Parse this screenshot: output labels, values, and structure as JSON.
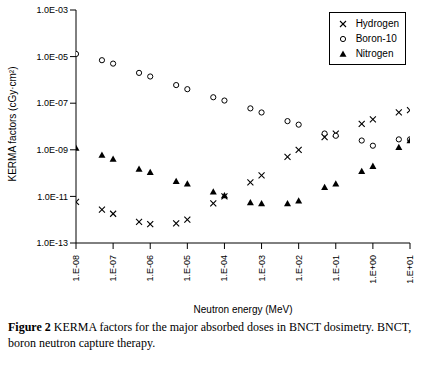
{
  "chart_data": {
    "type": "scatter",
    "caption_label": "Figure 2",
    "caption": "KERMA factors for the major absorbed doses in BNCT dosimetry. BNCT, boron neutron capture therapy.",
    "x_label": "Neutron energy (MeV)",
    "y_label": "KERMA factors (cGy·cm²)",
    "log": true,
    "grid": false,
    "legend": "upper right",
    "x": [
      1e-08,
      5e-08,
      1e-07,
      5e-07,
      1e-06,
      5e-06,
      1e-05,
      5e-05,
      0.0001,
      0.0005,
      0.001,
      0.005,
      0.01,
      0.05,
      0.1,
      0.5,
      1,
      5,
      10
    ],
    "series": [
      {
        "name": "Hydrogen",
        "color": "#000000",
        "marker": "x",
        "values": [
          5.8e-12,
          2.7e-12,
          1.8e-12,
          8e-13,
          6.5e-13,
          7e-13,
          1e-12,
          5e-12,
          1e-11,
          4e-11,
          8e-11,
          5e-10,
          1e-09,
          3.5e-09,
          5e-09,
          1.3e-08,
          2e-08,
          4e-08,
          5e-08
        ]
      },
      {
        "name": "Boron-10",
        "color": "#000000",
        "marker": "circle",
        "values": [
          1.3e-05,
          7e-06,
          5e-06,
          2e-06,
          1.4e-06,
          6e-07,
          4e-07,
          1.8e-07,
          1.3e-07,
          6e-08,
          4e-08,
          1.7e-08,
          1.2e-08,
          5e-09,
          4e-09,
          2.5e-09,
          1.5e-09,
          2.8e-09,
          2.8e-09
        ]
      },
      {
        "name": "Nitrogen",
        "color": "#000000",
        "marker": "triangle",
        "values": [
          1.2e-09,
          6e-10,
          4e-10,
          1.5e-10,
          1.1e-10,
          4.5e-11,
          3.5e-11,
          1.6e-11,
          1.1e-11,
          5.5e-12,
          5e-12,
          5e-12,
          6.5e-12,
          2.5e-11,
          3.5e-11,
          1.2e-10,
          2e-10,
          1.3e-09,
          2.5e-09
        ]
      }
    ],
    "xlim": [
      1e-08,
      10
    ],
    "xticks": [
      {
        "value": 1e-08,
        "label": "1.E-08"
      },
      {
        "value": 1e-07,
        "label": "1.E-07"
      },
      {
        "value": 1e-06,
        "label": "1.E-06"
      },
      {
        "value": 1e-05,
        "label": "1.E-05"
      },
      {
        "value": 0.0001,
        "label": "1.E-04"
      },
      {
        "value": 0.001,
        "label": "1.E-03"
      },
      {
        "value": 0.01,
        "label": "1.E-02"
      },
      {
        "value": 0.1,
        "label": "1.E-01"
      },
      {
        "value": 1,
        "label": "1.E+00"
      },
      {
        "value": 10,
        "label": "1.E+01"
      }
    ],
    "ylim": [
      1e-13,
      0.001
    ],
    "yticks": [
      {
        "value": 1e-13,
        "label": "1.0E-13"
      },
      {
        "value": 1e-11,
        "label": "1.0E-11"
      },
      {
        "value": 1e-09,
        "label": "1.0E-09"
      },
      {
        "value": 1e-07,
        "label": "1.0E-07"
      },
      {
        "value": 1e-05,
        "label": "1.0E-05"
      },
      {
        "value": 0.001,
        "label": "1.0E-03"
      }
    ]
  }
}
